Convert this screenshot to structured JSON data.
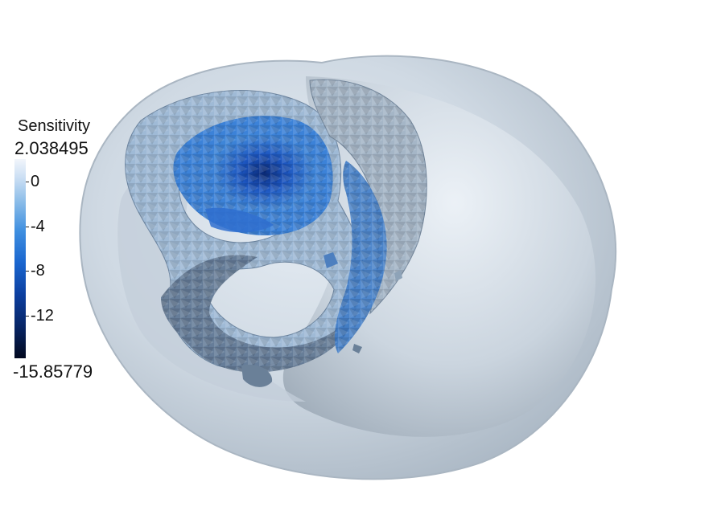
{
  "legend": {
    "title": "Sensitivity",
    "max_label": "2.038495",
    "min_label": "-15.85779",
    "max_value": 2.038495,
    "min_value": -15.85779,
    "ticks": [
      {
        "label": "0",
        "value": 0
      },
      {
        "label": "-4",
        "value": -4
      },
      {
        "label": "-8",
        "value": -8
      },
      {
        "label": "-12",
        "value": -12
      }
    ]
  },
  "colors": {
    "shell": "#c9d5df",
    "shell_inner": "#b9c4cf",
    "iso_light": "#a9c7e4",
    "iso_mid": "#4d8fd7",
    "iso_dark": "#1845a8",
    "iso_shadow": "#586b80"
  }
}
